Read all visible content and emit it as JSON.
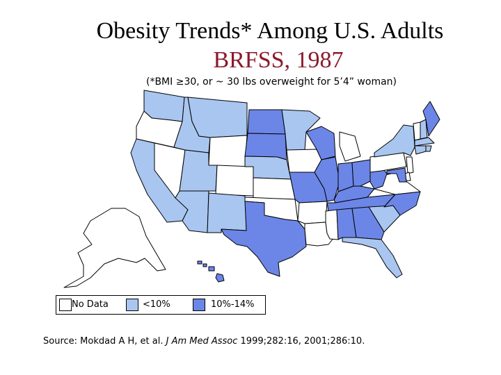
{
  "title": "Obesity Trends* Among U.S. Adults",
  "subtitle": "BRFSS, 1987",
  "note": "(*BMI ≥30, or ~ 30 lbs overweight for 5’4” woman)",
  "colors": {
    "no_data": "#ffffff",
    "lt10": "#a9c6f0",
    "10_14": "#6b86e6",
    "border": "#000000",
    "subtitle": "#8b1a2b"
  },
  "legend": [
    {
      "label": "No Data",
      "category": "no_data"
    },
    {
      "label": "<10%",
      "category": "lt10"
    },
    {
      "label": "10%-14%",
      "category": "10_14"
    }
  ],
  "source": {
    "prefix": "Source: Mokdad A H, et al. ",
    "journal": "J Am Med Assoc",
    "suffix": " 1999;282:16, 2001;286:10."
  },
  "states": {
    "WA": "lt10",
    "OR": "no_data",
    "CA": "lt10",
    "NV": "no_data",
    "ID": "lt10",
    "MT": "lt10",
    "WY": "no_data",
    "UT": "lt10",
    "AZ": "lt10",
    "CO": "no_data",
    "NM": "lt10",
    "ND": "10_14",
    "SD": "10_14",
    "NE": "lt10",
    "KS": "no_data",
    "OK": "no_data",
    "TX": "10_14",
    "MN": "lt10",
    "IA": "no_data",
    "MO": "10_14",
    "AR": "no_data",
    "LA": "no_data",
    "WI": "10_14",
    "IL": "10_14",
    "MI": "no_data",
    "IN": "10_14",
    "OH": "10_14",
    "KY": "10_14",
    "TN": "10_14",
    "MS": "no_data",
    "AL": "10_14",
    "GA": "10_14",
    "FL": "lt10",
    "SC": "lt10",
    "NC": "10_14",
    "VA": "no_data",
    "WV": "10_14",
    "PA": "no_data",
    "NY": "lt10",
    "VT": "no_data",
    "NH": "lt10",
    "ME": "10_14",
    "MA": "lt10",
    "RI": "lt10",
    "CT": "lt10",
    "NJ": "no_data",
    "DE": "no_data",
    "MD": "10_14",
    "AK": "no_data",
    "HI": "10_14"
  }
}
